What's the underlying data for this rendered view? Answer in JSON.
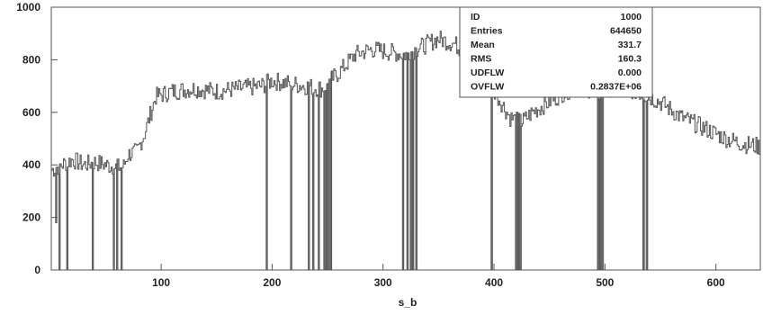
{
  "chart_data": {
    "type": "histogram",
    "xlabel": "s_b",
    "xlim": [
      1,
      640
    ],
    "ylim": [
      0,
      1000
    ],
    "x_ticks": [
      100,
      200,
      300,
      400,
      500,
      600
    ],
    "y_ticks": [
      0,
      200,
      400,
      600,
      800,
      1000
    ],
    "line_color": "#555555",
    "spike_color": "#9a9a9a",
    "grid": false,
    "stats_box": {
      "location": "top-right",
      "rows": [
        {
          "label": "ID",
          "value": "1000"
        },
        {
          "label": "Entries",
          "value": "644650"
        },
        {
          "label": "Mean",
          "value": "331.7"
        },
        {
          "label": "RMS",
          "value": "160.3"
        },
        {
          "label": "UDFLW",
          "value": "0.000"
        },
        {
          "label": "OVFLW",
          "value": "0.2837E+06"
        }
      ]
    },
    "level_points": [
      [
        1,
        380
      ],
      [
        10,
        400
      ],
      [
        20,
        420
      ],
      [
        30,
        400
      ],
      [
        40,
        410
      ],
      [
        50,
        400
      ],
      [
        60,
        390
      ],
      [
        66,
        395
      ],
      [
        70,
        440
      ],
      [
        78,
        450
      ],
      [
        85,
        520
      ],
      [
        95,
        660
      ],
      [
        110,
        680
      ],
      [
        130,
        690
      ],
      [
        150,
        680
      ],
      [
        170,
        690
      ],
      [
        190,
        700
      ],
      [
        200,
        720
      ],
      [
        215,
        710
      ],
      [
        230,
        700
      ],
      [
        245,
        690
      ],
      [
        260,
        750
      ],
      [
        275,
        820
      ],
      [
        290,
        840
      ],
      [
        305,
        830
      ],
      [
        320,
        820
      ],
      [
        335,
        850
      ],
      [
        350,
        880
      ],
      [
        365,
        860
      ],
      [
        380,
        800
      ],
      [
        395,
        720
      ],
      [
        405,
        650
      ],
      [
        415,
        580
      ],
      [
        425,
        560
      ],
      [
        435,
        600
      ],
      [
        450,
        640
      ],
      [
        465,
        680
      ],
      [
        480,
        700
      ],
      [
        495,
        670
      ],
      [
        510,
        700
      ],
      [
        520,
        690
      ],
      [
        535,
        670
      ],
      [
        550,
        640
      ],
      [
        570,
        580
      ],
      [
        590,
        540
      ],
      [
        610,
        500
      ],
      [
        625,
        480
      ],
      [
        640,
        470
      ]
    ],
    "drop_bins": [
      [
        5,
        180
      ],
      [
        8,
        0
      ],
      [
        15,
        0
      ],
      [
        38,
        0
      ],
      [
        57,
        0
      ],
      [
        60,
        0
      ],
      [
        64,
        0
      ],
      [
        195,
        0
      ],
      [
        217,
        0
      ],
      [
        233,
        0
      ],
      [
        237,
        0
      ],
      [
        242,
        0
      ],
      [
        247,
        0
      ],
      [
        249,
        0
      ],
      [
        251,
        0
      ],
      [
        253,
        0
      ],
      [
        318,
        0
      ],
      [
        322,
        0
      ],
      [
        325,
        0
      ],
      [
        327,
        0
      ],
      [
        330,
        0
      ],
      [
        398,
        0
      ],
      [
        420,
        0
      ],
      [
        422,
        0
      ],
      [
        424,
        0
      ],
      [
        494,
        0
      ],
      [
        496,
        0
      ],
      [
        498,
        0
      ],
      [
        535,
        0
      ],
      [
        538,
        0
      ]
    ]
  }
}
